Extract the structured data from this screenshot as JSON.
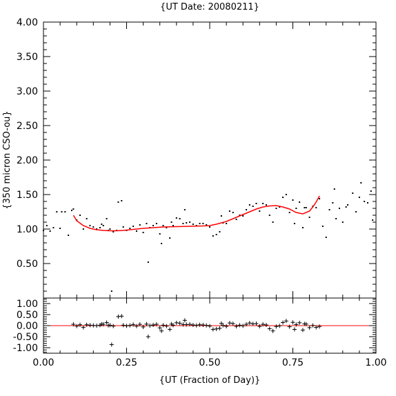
{
  "chart_data": [
    {
      "type": "scatter",
      "title": "{UT Date: 20080211}",
      "ylabel": "{350 micron CSO-ou}",
      "xlim": [
        0.0,
        1.0
      ],
      "ylim": [
        0.0,
        4.0
      ],
      "yticks": [
        "0.50",
        "1.00",
        "1.50",
        "2.00",
        "2.50",
        "3.00",
        "3.50",
        "4.00"
      ],
      "grid": false,
      "point_color": "#000000",
      "fit_color": "#ff0000",
      "series": [
        {
          "marker": "dot",
          "points": [
            [
              0.0,
              0.98
            ],
            [
              0.01,
              1.05
            ],
            [
              0.02,
              0.97
            ],
            [
              0.03,
              1.02
            ],
            [
              0.04,
              1.25
            ],
            [
              0.05,
              1.01
            ],
            [
              0.055,
              1.25
            ],
            [
              0.065,
              1.25
            ],
            [
              0.075,
              0.91
            ],
            [
              0.085,
              1.27
            ],
            [
              0.09,
              1.29
            ],
            [
              0.1,
              1.13
            ],
            [
              0.11,
              1.2
            ],
            [
              0.12,
              1.0
            ],
            [
              0.13,
              1.15
            ],
            [
              0.14,
              1.05
            ],
            [
              0.15,
              1.03
            ],
            [
              0.16,
              1.0
            ],
            [
              0.17,
              1.02
            ],
            [
              0.175,
              1.07
            ],
            [
              0.18,
              1.05
            ],
            [
              0.19,
              1.15
            ],
            [
              0.195,
              0.98
            ],
            [
              0.2,
              1.0
            ],
            [
              0.205,
              0.1
            ],
            [
              0.21,
              0.96
            ],
            [
              0.22,
              0.98
            ],
            [
              0.225,
              1.39
            ],
            [
              0.235,
              1.41
            ],
            [
              0.24,
              1.03
            ],
            [
              0.25,
              0.98
            ],
            [
              0.26,
              1.01
            ],
            [
              0.27,
              1.04
            ],
            [
              0.28,
              0.97
            ],
            [
              0.29,
              1.06
            ],
            [
              0.3,
              0.95
            ],
            [
              0.31,
              1.08
            ],
            [
              0.315,
              0.52
            ],
            [
              0.32,
              1.02
            ],
            [
              0.33,
              1.05
            ],
            [
              0.34,
              1.08
            ],
            [
              0.35,
              0.93
            ],
            [
              0.355,
              0.79
            ],
            [
              0.36,
              1.05
            ],
            [
              0.37,
              1.02
            ],
            [
              0.38,
              0.87
            ],
            [
              0.385,
              1.1
            ],
            [
              0.39,
              1.05
            ],
            [
              0.4,
              1.16
            ],
            [
              0.41,
              1.15
            ],
            [
              0.42,
              1.08
            ],
            [
              0.425,
              1.28
            ],
            [
              0.43,
              1.09
            ],
            [
              0.44,
              1.1
            ],
            [
              0.45,
              1.07
            ],
            [
              0.46,
              1.05
            ],
            [
              0.47,
              1.08
            ],
            [
              0.48,
              1.08
            ],
            [
              0.49,
              1.06
            ],
            [
              0.5,
              1.03
            ],
            [
              0.51,
              0.9
            ],
            [
              0.52,
              0.92
            ],
            [
              0.53,
              0.96
            ],
            [
              0.535,
              1.19
            ],
            [
              0.54,
              1.09
            ],
            [
              0.55,
              1.08
            ],
            [
              0.56,
              1.26
            ],
            [
              0.57,
              1.24
            ],
            [
              0.58,
              1.14
            ],
            [
              0.59,
              1.2
            ],
            [
              0.6,
              1.19
            ],
            [
              0.61,
              1.28
            ],
            [
              0.62,
              1.35
            ],
            [
              0.63,
              1.33
            ],
            [
              0.64,
              1.37
            ],
            [
              0.65,
              1.26
            ],
            [
              0.66,
              1.37
            ],
            [
              0.67,
              1.35
            ],
            [
              0.68,
              1.2
            ],
            [
              0.69,
              1.1
            ],
            [
              0.7,
              1.3
            ],
            [
              0.71,
              1.32
            ],
            [
              0.72,
              1.46
            ],
            [
              0.73,
              1.5
            ],
            [
              0.74,
              1.24
            ],
            [
              0.75,
              1.42
            ],
            [
              0.755,
              1.08
            ],
            [
              0.76,
              1.3
            ],
            [
              0.77,
              1.39
            ],
            [
              0.78,
              1.02
            ],
            [
              0.785,
              1.31
            ],
            [
              0.79,
              1.31
            ],
            [
              0.8,
              1.17
            ],
            [
              0.81,
              1.33
            ],
            [
              0.82,
              1.31
            ],
            [
              0.83,
              1.44
            ],
            [
              0.84,
              1.04
            ],
            [
              0.85,
              0.88
            ],
            [
              0.86,
              1.28
            ],
            [
              0.87,
              1.38
            ],
            [
              0.875,
              1.58
            ],
            [
              0.88,
              1.15
            ],
            [
              0.89,
              1.3
            ],
            [
              0.9,
              1.1
            ],
            [
              0.91,
              1.32
            ],
            [
              0.915,
              1.35
            ],
            [
              0.93,
              1.52
            ],
            [
              0.94,
              1.25
            ],
            [
              0.95,
              1.46
            ],
            [
              0.955,
              1.67
            ],
            [
              0.965,
              1.4
            ],
            [
              0.975,
              1.38
            ],
            [
              0.985,
              1.55
            ],
            [
              0.99,
              1.13
            ]
          ]
        },
        {
          "marker": "line",
          "points": [
            [
              0.09,
              1.2
            ],
            [
              0.1,
              1.12
            ],
            [
              0.12,
              1.05
            ],
            [
              0.14,
              1.01
            ],
            [
              0.16,
              0.99
            ],
            [
              0.18,
              0.98
            ],
            [
              0.2,
              0.975
            ],
            [
              0.22,
              0.975
            ],
            [
              0.24,
              0.98
            ],
            [
              0.26,
              0.99
            ],
            [
              0.28,
              1.0
            ],
            [
              0.3,
              1.01
            ],
            [
              0.33,
              1.02
            ],
            [
              0.36,
              1.03
            ],
            [
              0.4,
              1.035
            ],
            [
              0.44,
              1.04
            ],
            [
              0.48,
              1.045
            ],
            [
              0.5,
              1.05
            ],
            [
              0.52,
              1.07
            ],
            [
              0.55,
              1.11
            ],
            [
              0.58,
              1.17
            ],
            [
              0.61,
              1.23
            ],
            [
              0.64,
              1.29
            ],
            [
              0.66,
              1.32
            ],
            [
              0.68,
              1.335
            ],
            [
              0.7,
              1.34
            ],
            [
              0.72,
              1.32
            ],
            [
              0.74,
              1.29
            ],
            [
              0.76,
              1.24
            ],
            [
              0.78,
              1.22
            ],
            [
              0.8,
              1.26
            ],
            [
              0.81,
              1.32
            ],
            [
              0.82,
              1.39
            ],
            [
              0.83,
              1.48
            ]
          ]
        }
      ]
    },
    {
      "type": "scatter",
      "xlabel": "{UT (Fraction of Day)}",
      "xlim": [
        0.0,
        1.0
      ],
      "ylim": [
        -1.25,
        1.25
      ],
      "xticks": [
        "0.00",
        "0.25",
        "0.50",
        "0.75",
        "1.00"
      ],
      "yticks": [
        "1.00",
        "0.50",
        "0.00",
        "-0.50",
        "-1.00"
      ],
      "zero_line_color": "#ff0000",
      "point_color": "#000000",
      "series": [
        {
          "marker": "plus",
          "points": [
            [
              0.09,
              0.06
            ],
            [
              0.1,
              -0.02
            ],
            [
              0.11,
              0.04
            ],
            [
              0.12,
              -0.08
            ],
            [
              0.13,
              0.04
            ],
            [
              0.14,
              0.02
            ],
            [
              0.15,
              0.01
            ],
            [
              0.16,
              0.0
            ],
            [
              0.17,
              0.02
            ],
            [
              0.175,
              0.07
            ],
            [
              0.18,
              0.06
            ],
            [
              0.19,
              0.14
            ],
            [
              0.195,
              0.01
            ],
            [
              0.2,
              0.02
            ],
            [
              0.205,
              -0.86
            ],
            [
              0.21,
              -0.02
            ],
            [
              0.225,
              0.41
            ],
            [
              0.235,
              0.43
            ],
            [
              0.24,
              0.02
            ],
            [
              0.25,
              -0.01
            ],
            [
              0.26,
              0.01
            ],
            [
              0.27,
              0.05
            ],
            [
              0.28,
              -0.02
            ],
            [
              0.29,
              0.06
            ],
            [
              0.3,
              -0.06
            ],
            [
              0.31,
              0.07
            ],
            [
              0.315,
              -0.5
            ],
            [
              0.32,
              0.0
            ],
            [
              0.33,
              0.03
            ],
            [
              0.34,
              0.06
            ],
            [
              0.35,
              -0.1
            ],
            [
              0.355,
              -0.24
            ],
            [
              0.36,
              0.02
            ],
            [
              0.37,
              -0.02
            ],
            [
              0.38,
              -0.17
            ],
            [
              0.385,
              0.07
            ],
            [
              0.39,
              0.02
            ],
            [
              0.4,
              0.13
            ],
            [
              0.41,
              0.11
            ],
            [
              0.42,
              0.05
            ],
            [
              0.425,
              0.24
            ],
            [
              0.43,
              0.05
            ],
            [
              0.44,
              0.06
            ],
            [
              0.45,
              0.03
            ],
            [
              0.46,
              0.01
            ],
            [
              0.47,
              0.04
            ],
            [
              0.48,
              0.03
            ],
            [
              0.49,
              0.01
            ],
            [
              0.5,
              -0.02
            ],
            [
              0.51,
              -0.17
            ],
            [
              0.52,
              -0.15
            ],
            [
              0.53,
              -0.12
            ],
            [
              0.535,
              0.1
            ],
            [
              0.54,
              0.01
            ],
            [
              0.55,
              -0.03
            ],
            [
              0.56,
              0.12
            ],
            [
              0.57,
              0.09
            ],
            [
              0.58,
              -0.03
            ],
            [
              0.59,
              0.02
            ],
            [
              0.6,
              -0.01
            ],
            [
              0.61,
              0.06
            ],
            [
              0.62,
              0.12
            ],
            [
              0.63,
              0.08
            ],
            [
              0.64,
              0.09
            ],
            [
              0.65,
              -0.03
            ],
            [
              0.66,
              0.06
            ],
            [
              0.67,
              0.03
            ],
            [
              0.68,
              -0.14
            ],
            [
              0.69,
              -0.24
            ],
            [
              0.7,
              -0.04
            ],
            [
              0.71,
              -0.01
            ],
            [
              0.72,
              0.14
            ],
            [
              0.73,
              0.21
            ],
            [
              0.74,
              -0.05
            ],
            [
              0.75,
              0.15
            ],
            [
              0.755,
              -0.17
            ],
            [
              0.76,
              0.05
            ],
            [
              0.77,
              0.13
            ],
            [
              0.78,
              -0.2
            ],
            [
              0.785,
              0.08
            ],
            [
              0.79,
              0.07
            ],
            [
              0.8,
              -0.09
            ],
            [
              0.81,
              0.01
            ],
            [
              0.82,
              -0.08
            ],
            [
              0.83,
              -0.04
            ]
          ]
        }
      ]
    }
  ]
}
